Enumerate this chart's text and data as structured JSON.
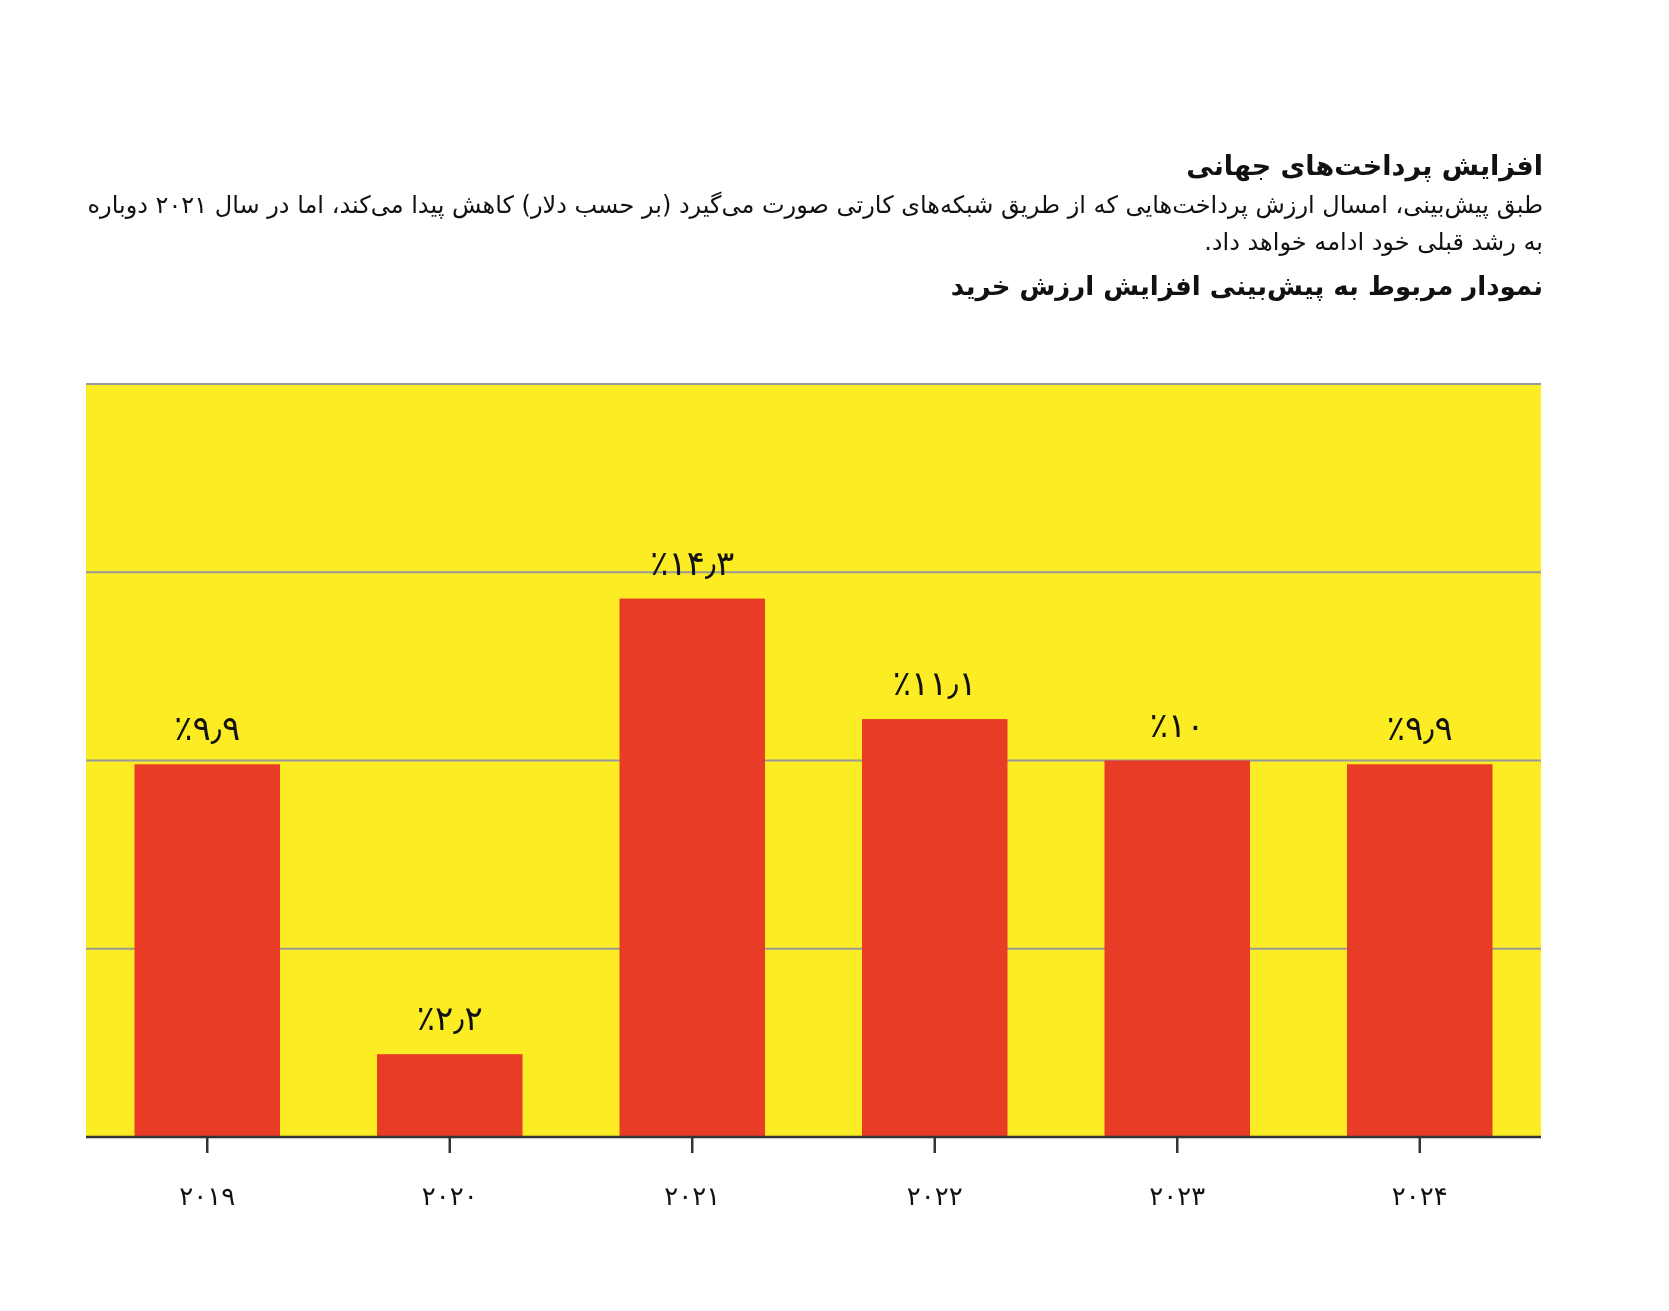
{
  "chart_data": {
    "type": "bar",
    "title": "افزایش پرداخت‌های جهانی",
    "subtitle": "طبق پیش‌بینی، امسال ارزش پرداخت‌هایی که از طریق شبکه‌های کارتی صورت می‌گیرد (بر حسب دلار) کاهش پیدا می‌کند، اما در سال ۲۰۲۱ دوباره به رشد قبلی خود ادامه خواهد داد.",
    "annotations": [
      "نمودار مربوط به پیش‌بینی افزایش ارزش خرید"
    ],
    "categories": [
      "۲۰۱۹",
      "۲۰۲۰",
      "۲۰۲۱",
      "۲۰۲۲",
      "۲۰۲۳",
      "۲۰۲۴"
    ],
    "values": [
      9.9,
      2.2,
      14.3,
      11.1,
      10,
      9.9
    ],
    "value_labels": [
      "٪۹٫۹",
      "٪۲٫۲",
      "٪۱۴٫۳",
      "٪۱۱٫۱",
      "٪۱۰",
      "٪۹٫۹"
    ],
    "color": "#e83c27",
    "ylim": [
      0,
      20
    ],
    "yticks": [
      {
        "value": 0,
        "label": null
      },
      {
        "value": 5,
        "label": null
      },
      {
        "value": 10,
        "label": null
      },
      {
        "value": 15,
        "label": null
      },
      {
        "value": 20,
        "label": null
      }
    ],
    "grid": "y",
    "tick_labels": "x"
  }
}
